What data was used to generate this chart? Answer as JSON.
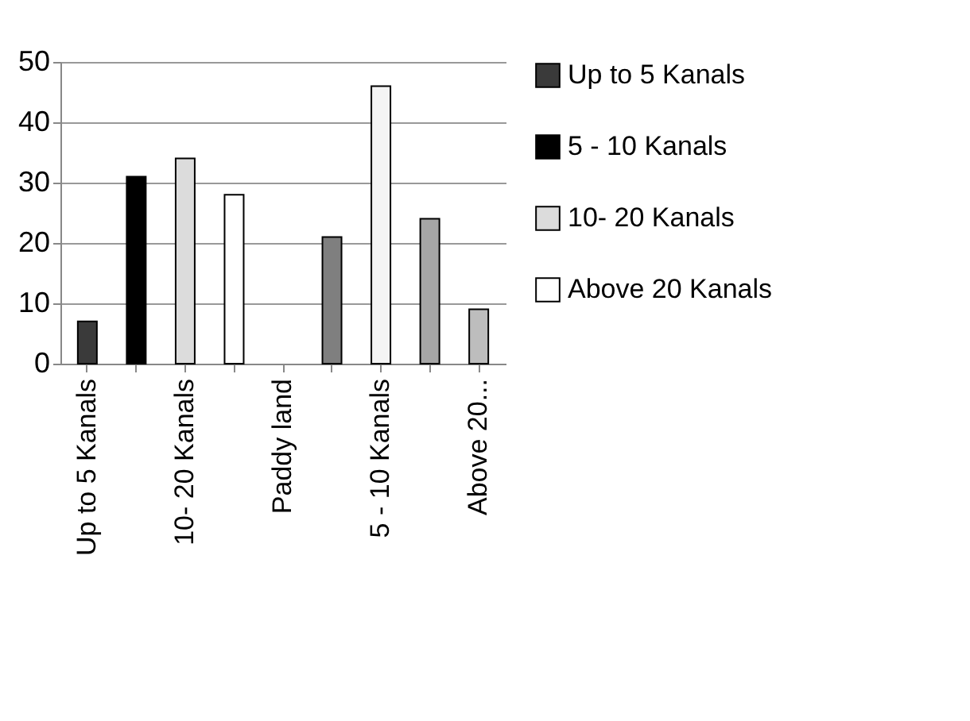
{
  "chart_data": {
    "type": "bar",
    "categories": [
      "Up to 5 Kanals",
      null,
      "10- 20 Kanals",
      null,
      "Paddy land",
      null,
      "5 - 10 Kanals",
      null,
      "Above 20..."
    ],
    "series": [
      {
        "name": "Up to 5 Kanals",
        "color": "#3a3a3a",
        "values": [
          7,
          null,
          null,
          null,
          null,
          null,
          null,
          null,
          null
        ]
      },
      {
        "name": "5 - 10 Kanals",
        "color": "#000000",
        "values": [
          null,
          31,
          null,
          null,
          null,
          null,
          null,
          null,
          null
        ]
      },
      {
        "name": "10- 20 Kanals",
        "color": "#dcdcdc",
        "values": [
          null,
          null,
          34,
          null,
          null,
          null,
          null,
          null,
          null
        ]
      },
      {
        "name": "Above 20 Kanals",
        "color": "#ffffff",
        "values": [
          null,
          null,
          null,
          28,
          null,
          null,
          null,
          null,
          null
        ]
      },
      {
        "color": "#7f7f7f",
        "values": [
          null,
          null,
          null,
          null,
          null,
          21,
          null,
          null,
          null
        ]
      },
      {
        "color": "#f4f4f4",
        "values": [
          null,
          null,
          null,
          null,
          null,
          null,
          46,
          null,
          null
        ]
      },
      {
        "color": "#a6a6a6",
        "values": [
          null,
          null,
          null,
          null,
          null,
          null,
          null,
          24,
          null
        ]
      },
      {
        "color": "#bdbdbd",
        "values": [
          null,
          null,
          null,
          null,
          null,
          null,
          null,
          null,
          9
        ]
      }
    ],
    "ylim": [
      0,
      50
    ],
    "yticks": [
      0,
      10,
      20,
      30,
      40,
      50
    ],
    "grid": "y",
    "legend": "right"
  }
}
